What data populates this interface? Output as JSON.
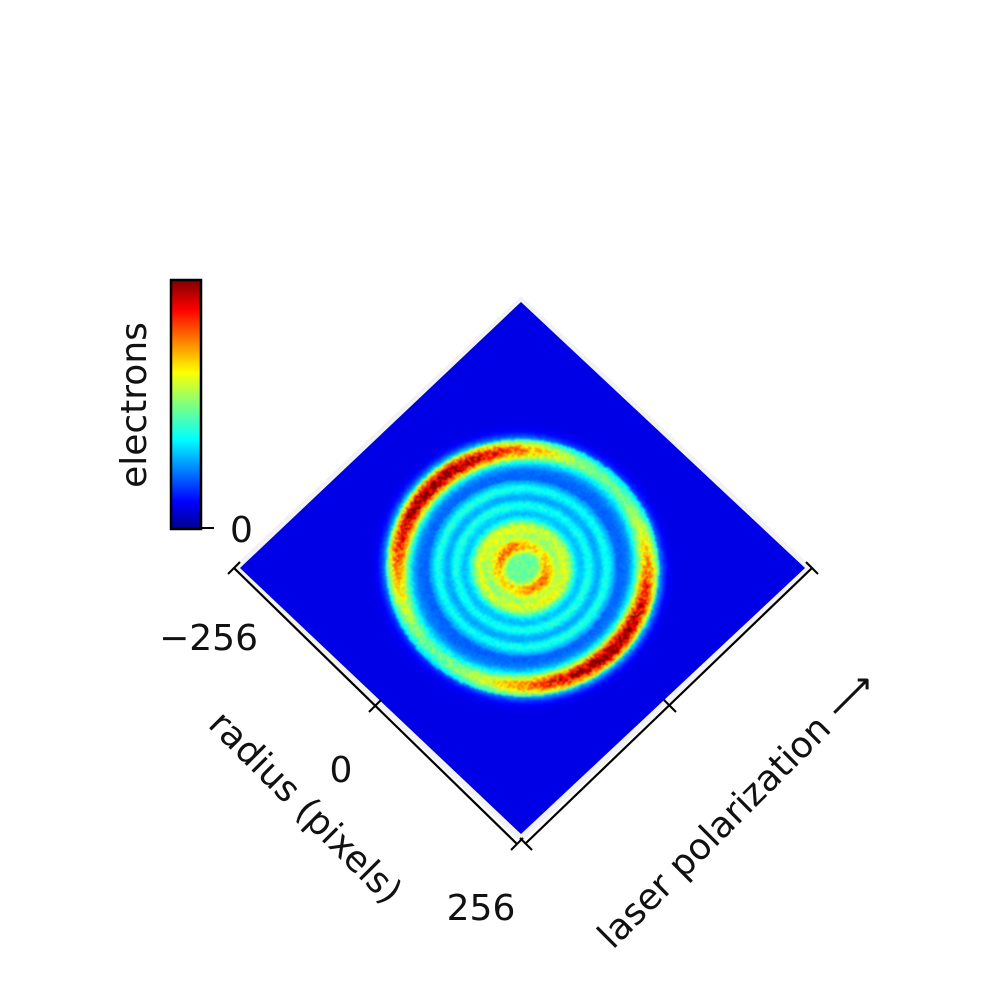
{
  "chart_data": {
    "type": "heatmap",
    "title": "",
    "subtitle": "",
    "description_axes": {
      "xlabel": "laser polarization ⟶",
      "ylabel": "radius (pixels)"
    },
    "radius_axis": {
      "label": "radius (pixels)",
      "ticks": [
        -256,
        0,
        256
      ],
      "tick_labels": [
        "−256",
        "0",
        "256"
      ],
      "range": [
        -256,
        256
      ]
    },
    "polarization_axis": {
      "label": "laser polarization ⟶",
      "ticks": [
        -256,
        0,
        256
      ],
      "tick_labels": [],
      "range": [
        -256,
        256
      ]
    },
    "colorbar": {
      "label": "electrons",
      "ticks": [
        0
      ],
      "tick_labels": [
        "0"
      ],
      "colormap": "jet"
    },
    "rings": [
      {
        "radius": 160,
        "intensity": 0.95,
        "anisotropy": 2.0,
        "relative_width": 0.06
      },
      {
        "radius": 108,
        "intensity": 0.18,
        "anisotropy": 0.2,
        "relative_width": 0.03
      },
      {
        "radius": 85,
        "intensity": 0.18,
        "anisotropy": 0.2,
        "relative_width": 0.03
      },
      {
        "radius": 55,
        "intensity": 0.4,
        "anisotropy": 0.1,
        "relative_width": 0.05
      },
      {
        "radius": 30,
        "intensity": 0.6,
        "anisotropy": 0.3,
        "relative_width": 0.05
      }
    ],
    "background_radius": 175,
    "max_radius": 256,
    "colors": {
      "jet_low": "#00008f",
      "jet_high": "#800000"
    }
  }
}
